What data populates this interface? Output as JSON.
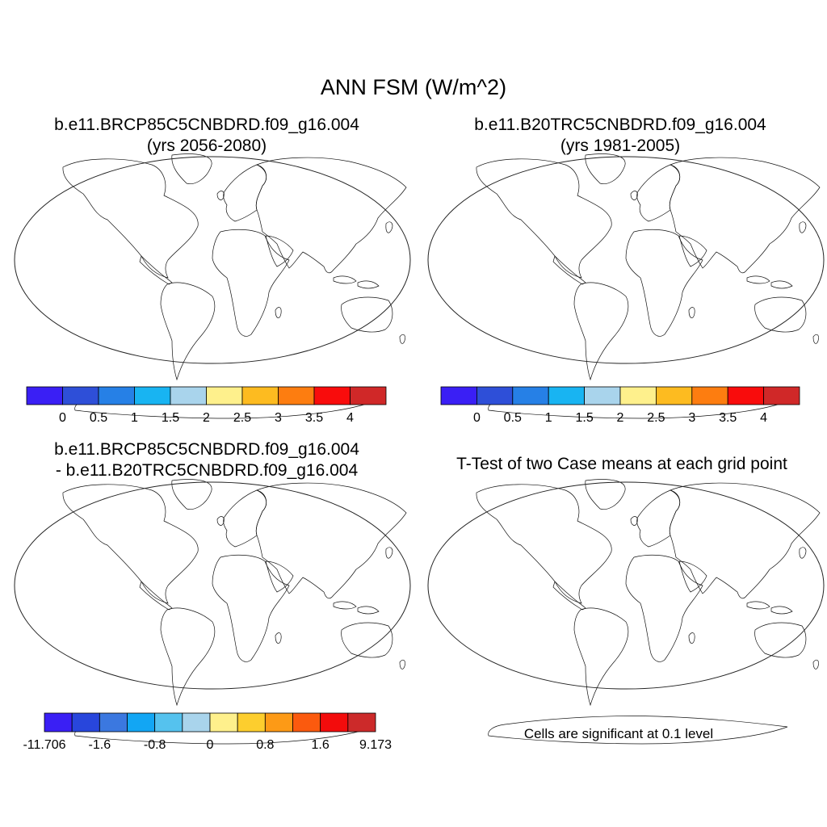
{
  "title": "ANN FSM (W/m^2)",
  "panels": {
    "p1": {
      "line1": "b.e11.BRCP85C5CNBDRD.f09_g16.004",
      "line2": "(yrs 2056-2080)"
    },
    "p2": {
      "line1": "b.e11.B20TRC5CNBDRD.f09_g16.004",
      "line2": "(yrs 1981-2005)"
    },
    "p3": {
      "line1": "b.e11.BRCP85C5CNBDRD.f09_g16.004",
      "line2": "- b.e11.B20TRC5CNBDRD.f09_g16.004"
    },
    "p4": {
      "line1": "T-Test of two Case means at each grid point"
    }
  },
  "colorbars": {
    "absolute": {
      "colors": [
        "#3a1ff5",
        "#2e4fd8",
        "#2680e6",
        "#18b4f2",
        "#a9d4ec",
        "#fef08c",
        "#fdbb20",
        "#fd7d10",
        "#f90c0c",
        "#d02828"
      ],
      "labels": [
        "0",
        "0.5",
        "1",
        "1.5",
        "2",
        "2.5",
        "3",
        "3.5",
        "4"
      ]
    },
    "difference": {
      "colors": [
        "#3a1ff5",
        "#2846dc",
        "#3b78e0",
        "#12a6f4",
        "#55c2ee",
        "#a9d4ec",
        "#fef08c",
        "#fdce2e",
        "#fd9a16",
        "#fb5a0e",
        "#f30c0c",
        "#cc2a2a"
      ],
      "labels": [
        "-11.706",
        "-1.6",
        "-0.8",
        "0",
        "0.8",
        "1.6",
        "9.173"
      ]
    }
  },
  "significance_color": "#ee0000",
  "significance_note": "Cells are significant at 0.1 level"
}
